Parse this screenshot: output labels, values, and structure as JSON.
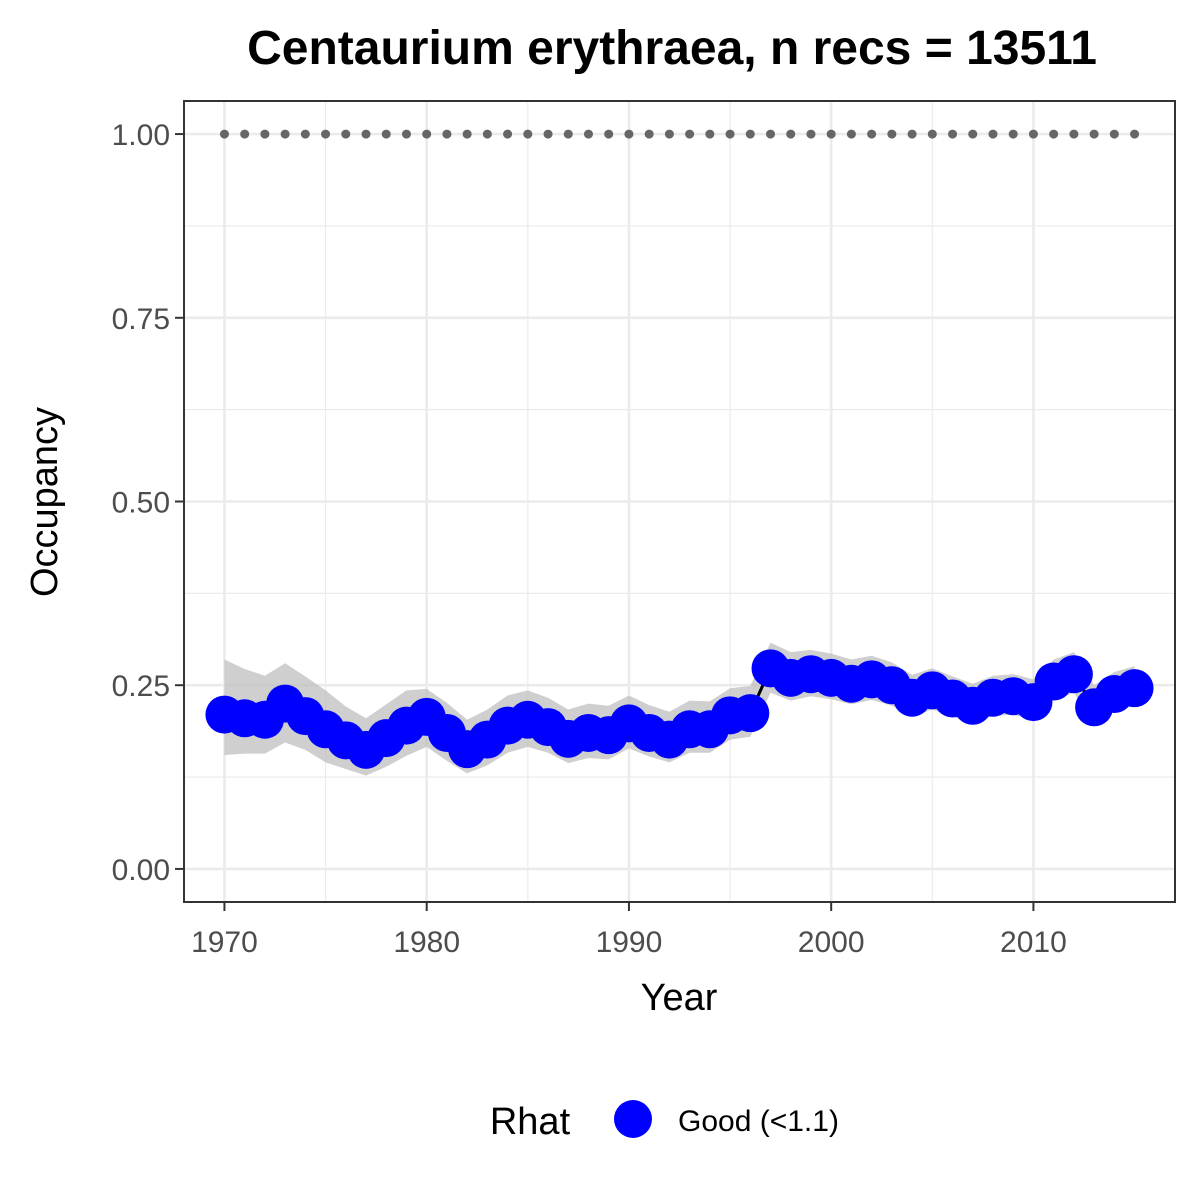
{
  "chart_data": {
    "type": "line",
    "title": "Centaurium erythraea, n recs = 13511",
    "xlabel": "Year",
    "ylabel": "Occupancy",
    "xlim": [
      1968,
      2017
    ],
    "ylim": [
      -0.045,
      1.045
    ],
    "x_ticks": [
      1970,
      1980,
      1990,
      2000,
      2010
    ],
    "x_tick_labels": [
      "1970",
      "1980",
      "1990",
      "2000",
      "2010"
    ],
    "y_ticks": [
      0,
      0.25,
      0.5,
      0.75,
      1.0
    ],
    "y_tick_labels": [
      "0.00",
      "0.25",
      "0.50",
      "0.75",
      "1.00"
    ],
    "grid": true,
    "legend_position": "bottom",
    "legend": {
      "title": "Rhat",
      "entries": [
        {
          "label": "Good (<1.1)",
          "color": "#0000ff"
        }
      ]
    },
    "colors": {
      "points": "#0000ff",
      "line": "#000000",
      "ribbon": "#bfbfbf",
      "reference": "#666666",
      "grid": "#ebebeb",
      "panel_border": "#333333"
    },
    "series": [
      {
        "x": [
          1970,
          1971,
          1972,
          1973,
          1974,
          1975,
          1976,
          1977,
          1978,
          1979,
          1980,
          1981,
          1982,
          1983,
          1984,
          1985,
          1986,
          1987,
          1988,
          1989,
          1990,
          1991,
          1992,
          1993,
          1994,
          1995,
          1996,
          1997,
          1998,
          1999,
          2000,
          2001,
          2002,
          2003,
          2004,
          2005,
          2006,
          2007,
          2008,
          2009,
          2010,
          2011,
          2012,
          2013,
          2014,
          2015
        ],
        "values": [
          0.21,
          0.205,
          0.203,
          0.225,
          0.208,
          0.19,
          0.175,
          0.162,
          0.178,
          0.195,
          0.207,
          0.185,
          0.163,
          0.176,
          0.195,
          0.203,
          0.193,
          0.177,
          0.185,
          0.182,
          0.198,
          0.185,
          0.176,
          0.19,
          0.19,
          0.209,
          0.212,
          0.273,
          0.26,
          0.265,
          0.26,
          0.252,
          0.258,
          0.25,
          0.233,
          0.243,
          0.232,
          0.222,
          0.233,
          0.235,
          0.227,
          0.255,
          0.265,
          0.22,
          0.238,
          0.246
        ],
        "lower": [
          0.155,
          0.157,
          0.157,
          0.172,
          0.162,
          0.145,
          0.136,
          0.127,
          0.139,
          0.154,
          0.166,
          0.147,
          0.13,
          0.141,
          0.158,
          0.166,
          0.158,
          0.144,
          0.151,
          0.149,
          0.164,
          0.153,
          0.145,
          0.158,
          0.158,
          0.176,
          0.18,
          0.24,
          0.229,
          0.235,
          0.231,
          0.224,
          0.23,
          0.222,
          0.207,
          0.217,
          0.207,
          0.198,
          0.208,
          0.21,
          0.203,
          0.23,
          0.24,
          0.197,
          0.214,
          0.222
        ],
        "upper": [
          0.285,
          0.272,
          0.263,
          0.28,
          0.262,
          0.243,
          0.221,
          0.205,
          0.224,
          0.243,
          0.245,
          0.226,
          0.203,
          0.217,
          0.236,
          0.243,
          0.233,
          0.217,
          0.225,
          0.222,
          0.236,
          0.223,
          0.214,
          0.229,
          0.228,
          0.246,
          0.249,
          0.308,
          0.295,
          0.298,
          0.293,
          0.285,
          0.29,
          0.281,
          0.264,
          0.273,
          0.262,
          0.252,
          0.263,
          0.265,
          0.258,
          0.285,
          0.295,
          0.25,
          0.268,
          0.276
        ]
      },
      {
        "x": [
          1970,
          1971,
          1972,
          1973,
          1974,
          1975,
          1976,
          1977,
          1978,
          1979,
          1980,
          1981,
          1982,
          1983,
          1984,
          1985,
          1986,
          1987,
          1988,
          1989,
          1990,
          1991,
          1992,
          1993,
          1994,
          1995,
          1996,
          1997,
          1998,
          1999,
          2000,
          2001,
          2002,
          2003,
          2004,
          2005,
          2006,
          2007,
          2008,
          2009,
          2010,
          2011,
          2012,
          2013,
          2014,
          2015
        ],
        "values": [
          1,
          1,
          1,
          1,
          1,
          1,
          1,
          1,
          1,
          1,
          1,
          1,
          1,
          1,
          1,
          1,
          1,
          1,
          1,
          1,
          1,
          1,
          1,
          1,
          1,
          1,
          1,
          1,
          1,
          1,
          1,
          1,
          1,
          1,
          1,
          1,
          1,
          1,
          1,
          1,
          1,
          1,
          1,
          1,
          1,
          1
        ]
      }
    ]
  }
}
